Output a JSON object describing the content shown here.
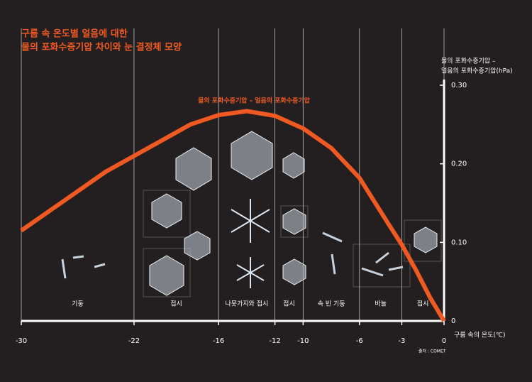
{
  "chart_data": {
    "type": "line",
    "title": [
      "구름 속 온도별 얼음에 대한",
      "물의 포화수증기압 차이와 눈 결정체 모양"
    ],
    "series_label": "물의 포화수증기압 – 얼음의 포화수증기압",
    "ylabel": [
      "물의 포화수증기압 –",
      "얼음의 포화수증기압(hPa)"
    ],
    "xlabel": "구름 속의 온도(℃)",
    "source": "출처 : COMET",
    "x": [
      -30,
      -28,
      -26,
      -24,
      -22,
      -20,
      -18,
      -16,
      -14,
      -12,
      -10,
      -8,
      -6,
      -4,
      -3,
      -2,
      -1,
      0
    ],
    "series": [
      {
        "color": "#f05a22",
        "values": [
          0.115,
          0.14,
          0.165,
          0.19,
          0.21,
          0.23,
          0.25,
          0.262,
          0.267,
          0.261,
          0.245,
          0.22,
          0.182,
          0.125,
          0.097,
          0.065,
          0.03,
          0
        ]
      }
    ],
    "xlim": [
      -30,
      0
    ],
    "xticks": [
      -30,
      -22,
      -16,
      -12,
      -10,
      -6,
      -3,
      0
    ],
    "ylim": [
      0,
      0.3
    ],
    "yticks": [
      0,
      {
        "value": 0.1,
        "label": "0.10"
      },
      {
        "value": 0.2,
        "label": "0.20"
      },
      {
        "value": 0.3,
        "label": "0.30"
      }
    ],
    "habits": [
      "기둥",
      "접시",
      "나뭇가지와 접시",
      "접시",
      "속 빈 기둥",
      "바늘",
      "접시"
    ]
  }
}
